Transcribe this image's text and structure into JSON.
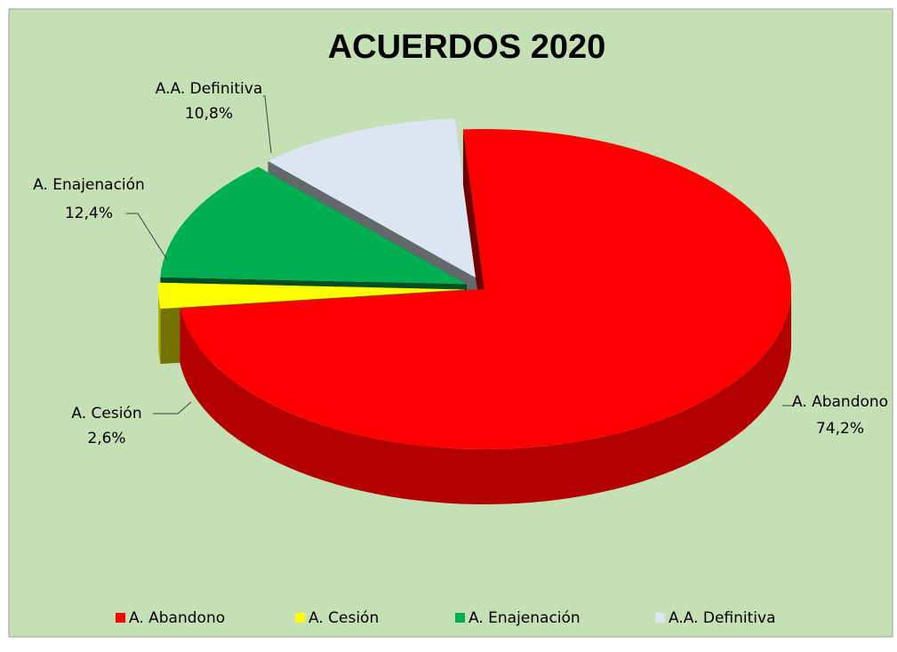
{
  "chart_data": {
    "type": "pie3d",
    "title": "ACUERDOS 2020",
    "categories": [
      "A. Abandono",
      "A. Cesión",
      "A. Enajenación",
      "A.A. Definitiva"
    ],
    "values": [
      74.2,
      2.6,
      12.4,
      10.8
    ],
    "value_labels": [
      "74,2%",
      "2,6%",
      "12,4%",
      "10,8%"
    ],
    "colors": [
      "#ff0000",
      "#ffff00",
      "#00b050",
      "#dce6f2"
    ],
    "legend": "bottom"
  }
}
